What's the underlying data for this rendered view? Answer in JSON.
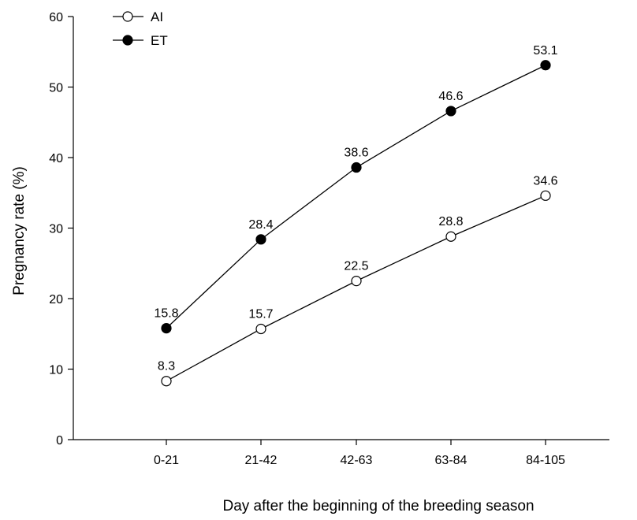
{
  "chart_data": {
    "type": "line",
    "title": "",
    "xlabel": "Day after the beginning of the breeding season",
    "ylabel": "Pregnancy rate (%)",
    "categories": [
      "0-21",
      "21-42",
      "42-63",
      "63-84",
      "84-105"
    ],
    "ylim": [
      0,
      60
    ],
    "yticks": [
      0,
      10,
      20,
      30,
      40,
      50,
      60
    ],
    "grid": false,
    "legend_position": "top-left",
    "series": [
      {
        "name": "AI",
        "marker": "open-circle",
        "values": [
          8.3,
          15.7,
          22.5,
          28.8,
          34.6
        ],
        "labels": [
          "8.3",
          "15.7",
          "22.5",
          "28.8",
          "34.6"
        ]
      },
      {
        "name": "ET",
        "marker": "filled-circle",
        "values": [
          15.8,
          28.4,
          38.6,
          46.6,
          53.1
        ],
        "labels": [
          "15.8",
          "28.4",
          "38.6",
          "46.6",
          "53.1"
        ]
      }
    ]
  }
}
